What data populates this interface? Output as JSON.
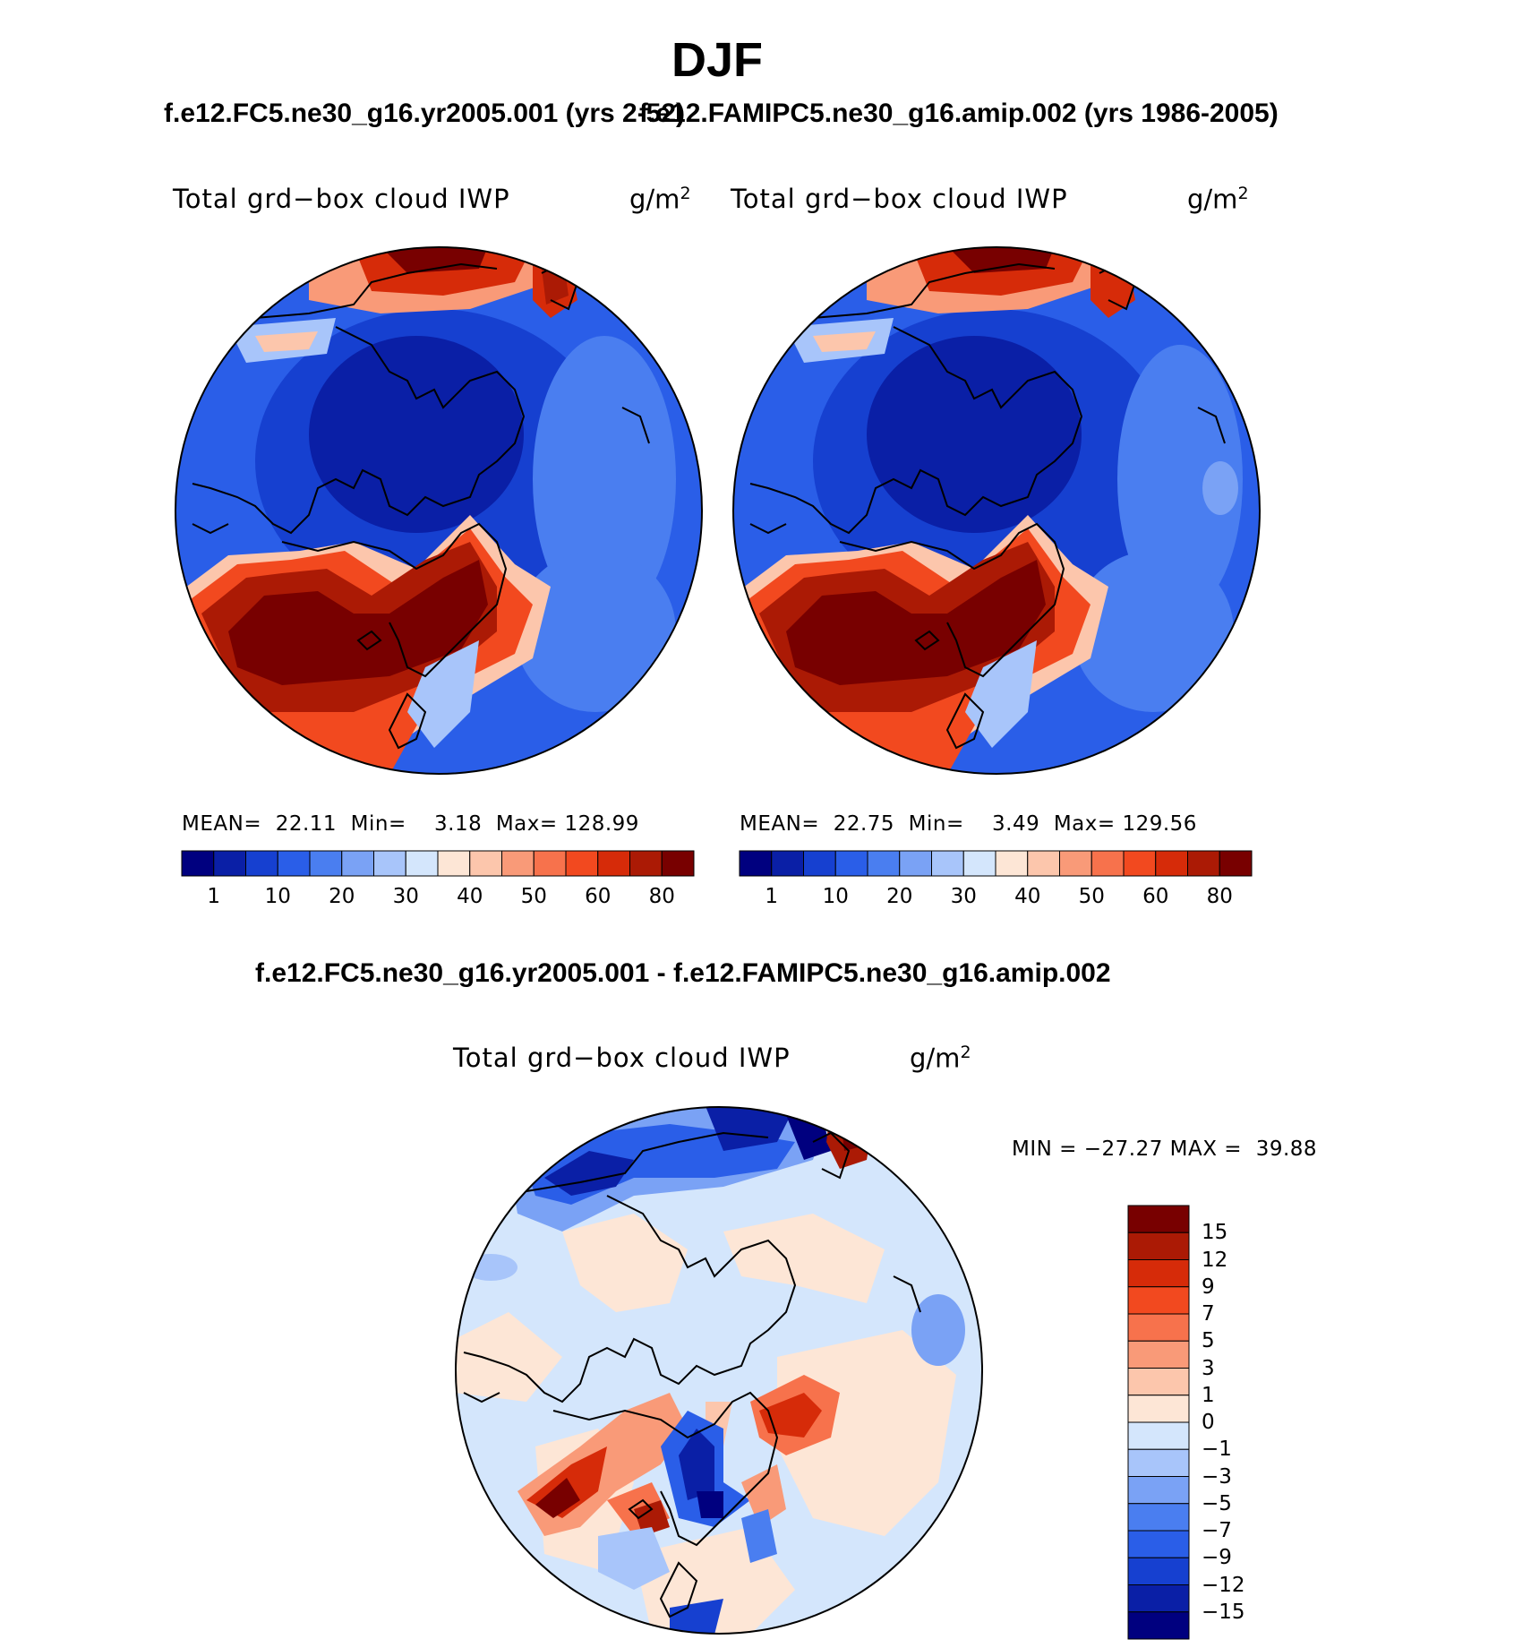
{
  "figure": {
    "season": "DJF",
    "case1_title": "f.e12.FC5.ne30_g16.yr2005.001 (yrs 2-52)",
    "case2_title": "f.e12.FAMIPC5.ne30_g16.amip.002 (yrs 1986-2005)",
    "diff_title": "f.e12.FC5.ne30_g16.yr2005.001 - f.e12.FAMIPC5.ne30_g16.amip.002"
  },
  "panels": [
    {
      "label": "Total grd−box cloud IWP",
      "units": "g/m",
      "units_exp": "2",
      "stats": "MEAN=  22.11  Min=    3.18  Max= 128.99"
    },
    {
      "label": "Total grd−box cloud IWP",
      "units": "g/m",
      "units_exp": "2",
      "stats": "MEAN=  22.75  Min=    3.49  Max= 129.56"
    }
  ],
  "diff_panel": {
    "label": "Total grd−box cloud IWP",
    "units": "g/m",
    "units_exp": "2",
    "stats": "MIN = −27.27 MAX =  39.88"
  },
  "colorbar_main": {
    "colors": [
      "#00007f",
      "#0a1fa6",
      "#1640d0",
      "#2a5ee8",
      "#4a7ef0",
      "#7aa2f5",
      "#a8c5fa",
      "#d4e6fc",
      "#fde6d6",
      "#fcc6ac",
      "#f99a78",
      "#f7724c",
      "#f2491f",
      "#d62b09",
      "#ab1a05",
      "#780000"
    ],
    "ticks": [
      {
        "label": "1",
        "index": 1
      },
      {
        "label": "10",
        "index": 3
      },
      {
        "label": "20",
        "index": 5
      },
      {
        "label": "30",
        "index": 7
      },
      {
        "label": "40",
        "index": 9
      },
      {
        "label": "50",
        "index": 11
      },
      {
        "label": "60",
        "index": 13
      },
      {
        "label": "80",
        "index": 15
      }
    ]
  },
  "colorbar_diff": {
    "colors": [
      "#780000",
      "#ab1a05",
      "#d62b09",
      "#f2491f",
      "#f7724c",
      "#f99a78",
      "#fcc6ac",
      "#fde6d6",
      "#d4e6fc",
      "#a8c5fa",
      "#7aa2f5",
      "#4a7ef0",
      "#2a5ee8",
      "#1640d0",
      "#0a1fa6",
      "#00007f"
    ],
    "labels": [
      "15",
      "12",
      "9",
      "7",
      "5",
      "3",
      "1",
      "0",
      "−1",
      "−3",
      "−5",
      "−7",
      "−9",
      "−12",
      "−15"
    ]
  }
}
